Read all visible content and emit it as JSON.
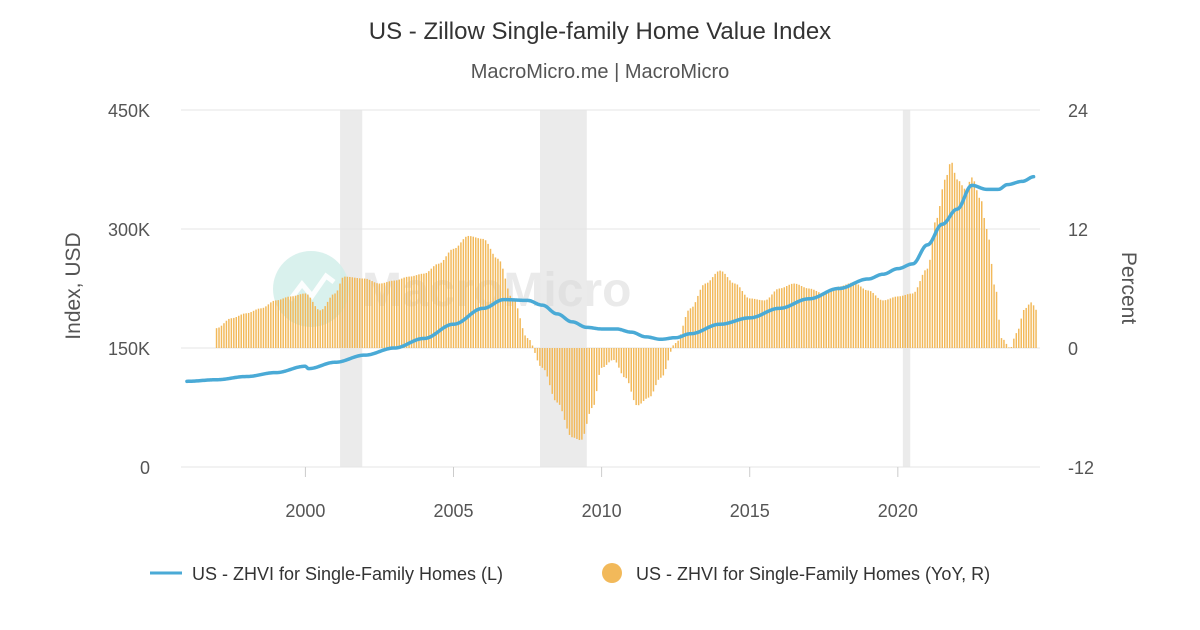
{
  "chart_data": {
    "type": "bar+line",
    "title": "US - Zillow Single-family Home Value Index",
    "subtitle": "MacroMicro.me | MacroMicro",
    "watermark": "MacroMicro",
    "y_left": {
      "label": "Index, USD",
      "ticks": [
        "0",
        "150K",
        "300K",
        "450K"
      ],
      "range": [
        0,
        450000
      ]
    },
    "y_right": {
      "label": "Percent",
      "ticks": [
        "-12",
        "0",
        "12",
        "24"
      ],
      "range": [
        -12,
        24
      ]
    },
    "x": {
      "ticks": [
        "2000",
        "2005",
        "2010",
        "2015",
        "2020"
      ],
      "tick_values": [
        2000,
        2005,
        2010,
        2015,
        2020
      ],
      "range": [
        1995.8,
        2024.8
      ]
    },
    "recessions": [
      [
        2001.17,
        2001.92
      ],
      [
        2007.92,
        2009.5
      ],
      [
        2020.17,
        2020.42
      ]
    ],
    "colors": {
      "line": "#4aaad6",
      "bars": "#f2b95a",
      "recession": "#ebebeb",
      "grid": "#e6e6e6"
    },
    "legend": {
      "placement": "bottom",
      "items": [
        {
          "label": "US - ZHVI for Single-Family Homes (L)",
          "kind": "line"
        },
        {
          "label": "US - ZHVI for Single-Family Homes (YoY, R)",
          "kind": "dot"
        }
      ]
    },
    "series": [
      {
        "name": "US - ZHVI for Single-Family Homes (L)",
        "axis": "left",
        "kind": "line",
        "points": [
          [
            1996.0,
            108000
          ],
          [
            1997.0,
            110000
          ],
          [
            1998.0,
            114000
          ],
          [
            1999.0,
            119000
          ],
          [
            2000.0,
            127000
          ],
          [
            2000.1,
            124000
          ],
          [
            2001.0,
            132000
          ],
          [
            2002.0,
            141000
          ],
          [
            2003.0,
            150000
          ],
          [
            2004.0,
            162000
          ],
          [
            2005.0,
            180000
          ],
          [
            2006.0,
            200000
          ],
          [
            2006.7,
            211000
          ],
          [
            2007.5,
            210000
          ],
          [
            2008.0,
            204000
          ],
          [
            2008.5,
            193000
          ],
          [
            2009.0,
            183000
          ],
          [
            2009.5,
            176000
          ],
          [
            2010.0,
            174000
          ],
          [
            2010.5,
            174000
          ],
          [
            2011.0,
            170000
          ],
          [
            2011.5,
            164000
          ],
          [
            2012.0,
            161000
          ],
          [
            2012.5,
            163000
          ],
          [
            2013.0,
            168000
          ],
          [
            2014.0,
            180000
          ],
          [
            2015.0,
            188000
          ],
          [
            2016.0,
            200000
          ],
          [
            2017.0,
            212000
          ],
          [
            2018.0,
            225000
          ],
          [
            2019.0,
            237000
          ],
          [
            2019.5,
            243000
          ],
          [
            2020.0,
            250000
          ],
          [
            2020.5,
            256000
          ],
          [
            2021.0,
            280000
          ],
          [
            2021.5,
            306000
          ],
          [
            2022.0,
            325000
          ],
          [
            2022.5,
            355000
          ],
          [
            2023.0,
            350000
          ],
          [
            2023.4,
            350000
          ],
          [
            2023.7,
            356000
          ],
          [
            2024.2,
            360000
          ],
          [
            2024.6,
            366000
          ]
        ]
      },
      {
        "name": "US - ZHVI for Single-Family Homes (YoY, R)",
        "axis": "right",
        "kind": "bar",
        "points": [
          [
            1997.0,
            2.0
          ],
          [
            1997.5,
            3.0
          ],
          [
            1998.0,
            3.5
          ],
          [
            1998.5,
            4.0
          ],
          [
            1999.0,
            4.8
          ],
          [
            1999.5,
            5.2
          ],
          [
            2000.0,
            5.5
          ],
          [
            2000.5,
            3.8
          ],
          [
            2001.0,
            5.5
          ],
          [
            2001.3,
            7.2
          ],
          [
            2002.0,
            7.0
          ],
          [
            2002.5,
            6.5
          ],
          [
            2003.0,
            6.8
          ],
          [
            2003.5,
            7.2
          ],
          [
            2004.0,
            7.5
          ],
          [
            2004.5,
            8.5
          ],
          [
            2005.0,
            10.0
          ],
          [
            2005.5,
            11.3
          ],
          [
            2006.0,
            11.0
          ],
          [
            2006.5,
            9.0
          ],
          [
            2007.0,
            5.0
          ],
          [
            2007.5,
            1.0
          ],
          [
            2008.0,
            -2.0
          ],
          [
            2008.5,
            -5.5
          ],
          [
            2009.0,
            -9.0
          ],
          [
            2009.3,
            -9.3
          ],
          [
            2009.7,
            -6.0
          ],
          [
            2010.0,
            -2.0
          ],
          [
            2010.4,
            -1.2
          ],
          [
            2010.8,
            -3.0
          ],
          [
            2011.2,
            -5.8
          ],
          [
            2011.6,
            -5.0
          ],
          [
            2012.0,
            -3.0
          ],
          [
            2012.5,
            0.5
          ],
          [
            2013.0,
            4.0
          ],
          [
            2013.5,
            6.5
          ],
          [
            2014.0,
            7.8
          ],
          [
            2014.5,
            6.5
          ],
          [
            2015.0,
            5.0
          ],
          [
            2015.5,
            4.8
          ],
          [
            2016.0,
            6.0
          ],
          [
            2016.5,
            6.5
          ],
          [
            2017.0,
            6.0
          ],
          [
            2017.5,
            5.5
          ],
          [
            2018.0,
            6.2
          ],
          [
            2018.5,
            6.6
          ],
          [
            2019.0,
            5.8
          ],
          [
            2019.5,
            4.8
          ],
          [
            2020.0,
            5.2
          ],
          [
            2020.5,
            5.5
          ],
          [
            2021.0,
            8.0
          ],
          [
            2021.3,
            13.0
          ],
          [
            2021.6,
            17.0
          ],
          [
            2021.8,
            18.8
          ],
          [
            2022.0,
            17.0
          ],
          [
            2022.3,
            16.0
          ],
          [
            2022.5,
            17.2
          ],
          [
            2022.8,
            15.0
          ],
          [
            2023.0,
            12.0
          ],
          [
            2023.3,
            6.0
          ],
          [
            2023.5,
            1.0
          ],
          [
            2023.8,
            0.0
          ],
          [
            2024.0,
            1.5
          ],
          [
            2024.3,
            4.0
          ],
          [
            2024.5,
            4.6
          ],
          [
            2024.7,
            3.8
          ]
        ]
      }
    ]
  }
}
